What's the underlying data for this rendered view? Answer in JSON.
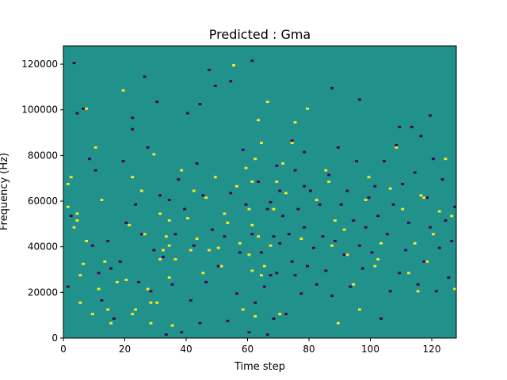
{
  "chart_data": {
    "type": "heatmap",
    "title": "Predicted : Gma",
    "xlabel": "Time step",
    "ylabel": "Frequency (Hz)",
    "xlim": [
      0,
      128
    ],
    "ylim": [
      0,
      128000
    ],
    "x_ticks": [
      0,
      20,
      40,
      60,
      80,
      100,
      120
    ],
    "x_tick_labels": [
      "0",
      "20",
      "40",
      "60",
      "80",
      "100",
      "120"
    ],
    "y_ticks": [
      0,
      20000,
      40000,
      60000,
      80000,
      100000,
      120000
    ],
    "y_tick_labels": [
      "0",
      "20000",
      "40000",
      "60000",
      "80000",
      "100000",
      "120000"
    ],
    "grid": false,
    "colors": {
      "background": "#21918c",
      "high": "#fde725",
      "low": "#440154"
    },
    "cell_size": {
      "time_steps": 1,
      "frequency_hz": 1000
    },
    "high_cells": [
      [
        1,
        57000
      ],
      [
        1,
        67000
      ],
      [
        2,
        70000
      ],
      [
        3,
        48000
      ],
      [
        4,
        51000
      ],
      [
        4,
        54000
      ],
      [
        5,
        15000
      ],
      [
        5,
        27000
      ],
      [
        6,
        32000
      ],
      [
        7,
        42000
      ],
      [
        7,
        100000
      ],
      [
        9,
        10000
      ],
      [
        10,
        83000
      ],
      [
        11,
        21000
      ],
      [
        12,
        60000
      ],
      [
        13,
        33000
      ],
      [
        14,
        12000
      ],
      [
        15,
        6000
      ],
      [
        17,
        24000
      ],
      [
        19,
        108000
      ],
      [
        20,
        25000
      ],
      [
        21,
        49000
      ],
      [
        22,
        70000
      ],
      [
        22,
        10000
      ],
      [
        23,
        12000
      ],
      [
        25,
        64000
      ],
      [
        26,
        45000
      ],
      [
        27,
        21000
      ],
      [
        28,
        15000
      ],
      [
        28,
        6000
      ],
      [
        29,
        80000
      ],
      [
        30,
        15000
      ],
      [
        31,
        54000
      ],
      [
        31,
        34000
      ],
      [
        32,
        38000
      ],
      [
        33,
        44000
      ],
      [
        34,
        51000
      ],
      [
        34,
        40000
      ],
      [
        34,
        26000
      ],
      [
        35,
        5000
      ],
      [
        36,
        34000
      ],
      [
        38,
        73000
      ],
      [
        40,
        52000
      ],
      [
        41,
        38000
      ],
      [
        42,
        64000
      ],
      [
        43,
        43000
      ],
      [
        45,
        28000
      ],
      [
        46,
        61000
      ],
      [
        47,
        38000
      ],
      [
        49,
        70000
      ],
      [
        50,
        39000
      ],
      [
        51,
        31000
      ],
      [
        52,
        54000
      ],
      [
        53,
        50000
      ],
      [
        55,
        119000
      ],
      [
        57,
        41000
      ],
      [
        59,
        74000
      ],
      [
        60,
        56000
      ],
      [
        61,
        68000
      ],
      [
        60,
        36000
      ],
      [
        61,
        49000
      ],
      [
        61,
        29000
      ],
      [
        62,
        78000
      ],
      [
        62,
        9000
      ],
      [
        63,
        44000
      ],
      [
        64,
        27000
      ],
      [
        65,
        31000
      ],
      [
        66,
        103000
      ],
      [
        67,
        40000
      ],
      [
        68,
        56000
      ],
      [
        70,
        10000
      ],
      [
        71,
        76000
      ],
      [
        72,
        63000
      ],
      [
        74,
        85000
      ],
      [
        77,
        43000
      ],
      [
        79,
        100000
      ],
      [
        82,
        60000
      ],
      [
        85,
        73000
      ],
      [
        86,
        68000
      ],
      [
        87,
        40000
      ],
      [
        88,
        51000
      ],
      [
        89,
        6000
      ],
      [
        91,
        47000
      ],
      [
        92,
        36000
      ],
      [
        94,
        23000
      ],
      [
        96,
        12000
      ],
      [
        98,
        60000
      ],
      [
        99,
        70000
      ],
      [
        101,
        31000
      ],
      [
        102,
        34000
      ],
      [
        103,
        41000
      ],
      [
        106,
        65000
      ],
      [
        108,
        83000
      ],
      [
        110,
        56000
      ],
      [
        112,
        28000
      ],
      [
        114,
        41000
      ],
      [
        115,
        20000
      ],
      [
        116,
        62000
      ],
      [
        117,
        61000
      ],
      [
        118,
        33000
      ],
      [
        120,
        45000
      ],
      [
        122,
        55000
      ],
      [
        124,
        78000
      ],
      [
        126,
        53000
      ],
      [
        127,
        21000
      ],
      [
        56,
        66000
      ],
      [
        58,
        12000
      ],
      [
        63,
        95000
      ],
      [
        64,
        85000
      ],
      [
        69,
        68000
      ],
      [
        75,
        94000
      ]
    ],
    "low_cells": [
      [
        1,
        22000
      ],
      [
        2,
        53000
      ],
      [
        3,
        120000
      ],
      [
        4,
        98000
      ],
      [
        6,
        100000
      ],
      [
        8,
        78000
      ],
      [
        9,
        40000
      ],
      [
        10,
        73000
      ],
      [
        11,
        28000
      ],
      [
        12,
        16000
      ],
      [
        14,
        42000
      ],
      [
        15,
        30000
      ],
      [
        16,
        8000
      ],
      [
        18,
        33000
      ],
      [
        19,
        77000
      ],
      [
        20,
        50000
      ],
      [
        22,
        91000
      ],
      [
        23,
        58000
      ],
      [
        24,
        24000
      ],
      [
        25,
        45000
      ],
      [
        26,
        114000
      ],
      [
        27,
        83000
      ],
      [
        28,
        20000
      ],
      [
        29,
        38000
      ],
      [
        31,
        62000
      ],
      [
        32,
        35000
      ],
      [
        33,
        1000
      ],
      [
        34,
        60000
      ],
      [
        35,
        23000
      ],
      [
        36,
        45000
      ],
      [
        37,
        69000
      ],
      [
        38,
        2000
      ],
      [
        39,
        56000
      ],
      [
        40,
        98000
      ],
      [
        41,
        16000
      ],
      [
        42,
        40000
      ],
      [
        43,
        76000
      ],
      [
        44,
        6000
      ],
      [
        45,
        62000
      ],
      [
        46,
        24000
      ],
      [
        47,
        117000
      ],
      [
        48,
        47000
      ],
      [
        49,
        110000
      ],
      [
        50,
        31000
      ],
      [
        52,
        44000
      ],
      [
        53,
        7000
      ],
      [
        54,
        63000
      ],
      [
        56,
        19000
      ],
      [
        57,
        37000
      ],
      [
        58,
        82000
      ],
      [
        59,
        58000
      ],
      [
        60,
        2000
      ],
      [
        61,
        45000
      ],
      [
        62,
        15000
      ],
      [
        63,
        68000
      ],
      [
        64,
        37000
      ],
      [
        65,
        22000
      ],
      [
        66,
        56000
      ],
      [
        66,
        1000
      ],
      [
        67,
        59000
      ],
      [
        67,
        27000
      ],
      [
        68,
        44000
      ],
      [
        68,
        8000
      ],
      [
        69,
        75000
      ],
      [
        69,
        28000
      ],
      [
        70,
        41000
      ],
      [
        70,
        64000
      ],
      [
        71,
        53000
      ],
      [
        72,
        10000
      ],
      [
        73,
        45000
      ],
      [
        74,
        86000
      ],
      [
        74,
        33000
      ],
      [
        75,
        73000
      ],
      [
        75,
        27000
      ],
      [
        76,
        56000
      ],
      [
        77,
        19000
      ],
      [
        78,
        48000
      ],
      [
        78,
        81000
      ],
      [
        79,
        31000
      ],
      [
        80,
        64000
      ],
      [
        81,
        39000
      ],
      [
        82,
        23000
      ],
      [
        83,
        58000
      ],
      [
        84,
        44000
      ],
      [
        85,
        29000
      ],
      [
        86,
        71000
      ],
      [
        87,
        18000
      ],
      [
        88,
        42000
      ],
      [
        89,
        83000
      ],
      [
        90,
        58000
      ],
      [
        91,
        36000
      ],
      [
        92,
        64000
      ],
      [
        93,
        22000
      ],
      [
        94,
        51000
      ],
      [
        95,
        77000
      ],
      [
        96,
        40000
      ],
      [
        97,
        30000
      ],
      [
        98,
        48000
      ],
      [
        99,
        61000
      ],
      [
        100,
        37000
      ],
      [
        101,
        66000
      ],
      [
        102,
        53000
      ],
      [
        103,
        8000
      ],
      [
        104,
        77000
      ],
      [
        105,
        45000
      ],
      [
        106,
        20000
      ],
      [
        107,
        58000
      ],
      [
        108,
        84000
      ],
      [
        109,
        28000
      ],
      [
        110,
        67000
      ],
      [
        111,
        38000
      ],
      [
        112,
        50000
      ],
      [
        113,
        92000
      ],
      [
        114,
        72000
      ],
      [
        115,
        23000
      ],
      [
        116,
        88000
      ],
      [
        117,
        33000
      ],
      [
        118,
        61000
      ],
      [
        119,
        48000
      ],
      [
        120,
        78000
      ],
      [
        121,
        20000
      ],
      [
        122,
        39000
      ],
      [
        123,
        69000
      ],
      [
        124,
        51000
      ],
      [
        125,
        26000
      ],
      [
        126,
        42000
      ],
      [
        127,
        57000
      ],
      [
        22,
        96000
      ],
      [
        30,
        103000
      ],
      [
        44,
        102000
      ],
      [
        54,
        112000
      ],
      [
        61,
        121000
      ],
      [
        78,
        66000
      ],
      [
        87,
        109000
      ],
      [
        96,
        104000
      ],
      [
        109,
        92000
      ],
      [
        119,
        97000
      ]
    ]
  }
}
